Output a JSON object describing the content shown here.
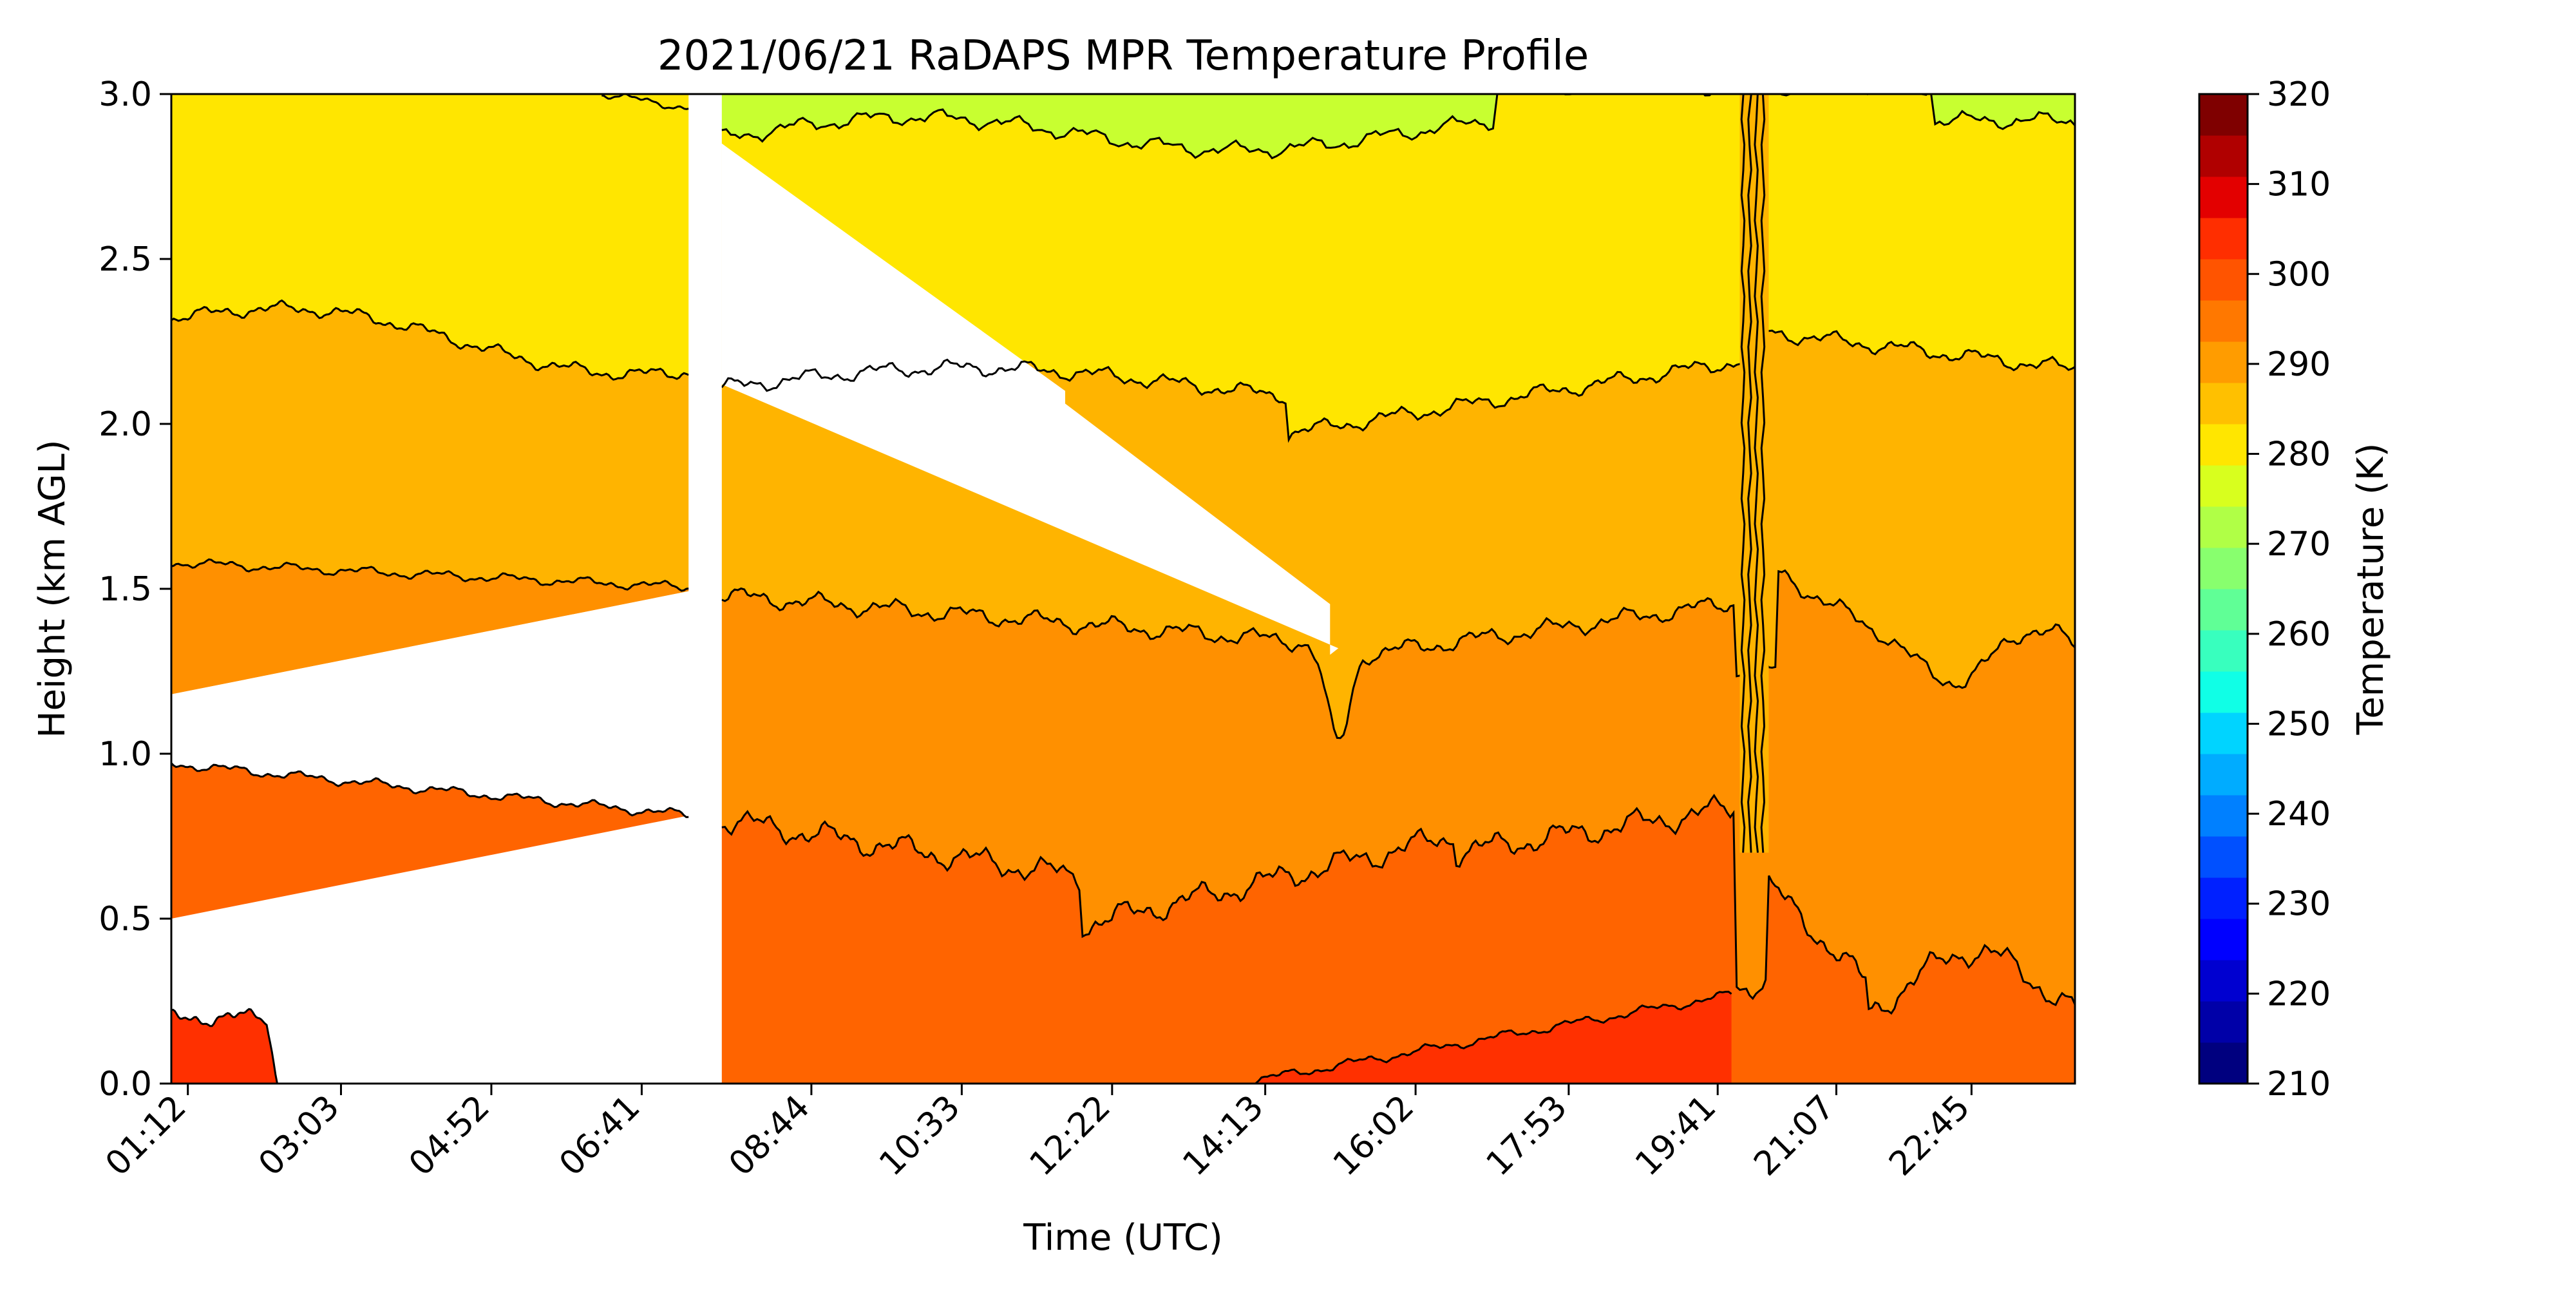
{
  "chart_data": {
    "type": "heatmap",
    "title": "2021/06/21 RaDAPS MPR Temperature Profile",
    "xlabel": "Time (UTC)",
    "ylabel": "Height (km AGL)",
    "colorbar_label": "Temperature (K)",
    "x_ticks": [
      "01:12",
      "03:03",
      "04:52",
      "06:41",
      "08:44",
      "10:33",
      "12:22",
      "14:13",
      "16:02",
      "17:53",
      "19:41",
      "21:07",
      "22:45"
    ],
    "y_ticks": [
      "0.0",
      "0.5",
      "1.0",
      "1.5",
      "2.0",
      "2.5",
      "3.0"
    ],
    "ylim": [
      0,
      3
    ],
    "colorbar_ticks": [
      "210",
      "220",
      "230",
      "240",
      "250",
      "260",
      "270",
      "280",
      "290",
      "300",
      "310",
      "320"
    ],
    "colorbar_range": [
      210,
      320
    ],
    "colormap": "jet",
    "grid": false,
    "contour_levels_K": [
      275,
      280,
      285,
      290,
      295,
      300,
      305
    ],
    "fill_colors": {
      "275": "#c8ff30",
      "280": "#ffe600",
      "285": "#ffb400",
      "290": "#ff9000",
      "295": "#ff6400",
      "300": "#ff3000",
      "305": "#ff1000"
    },
    "colorbar_colors": [
      "#00007f",
      "#0000a8",
      "#0000d0",
      "#0000ff",
      "#0020ff",
      "#0050ff",
      "#0080ff",
      "#00acff",
      "#00d4ff",
      "#10ffe6",
      "#38ffbe",
      "#60ff96",
      "#88ff6e",
      "#b0ff46",
      "#d8ff1e",
      "#ffe600",
      "#ffc000",
      "#ff9c00",
      "#ff7800",
      "#ff5400",
      "#ff2e00",
      "#e30000",
      "#b00000",
      "#7f0000"
    ],
    "missing_data_color": "#ffffff"
  }
}
